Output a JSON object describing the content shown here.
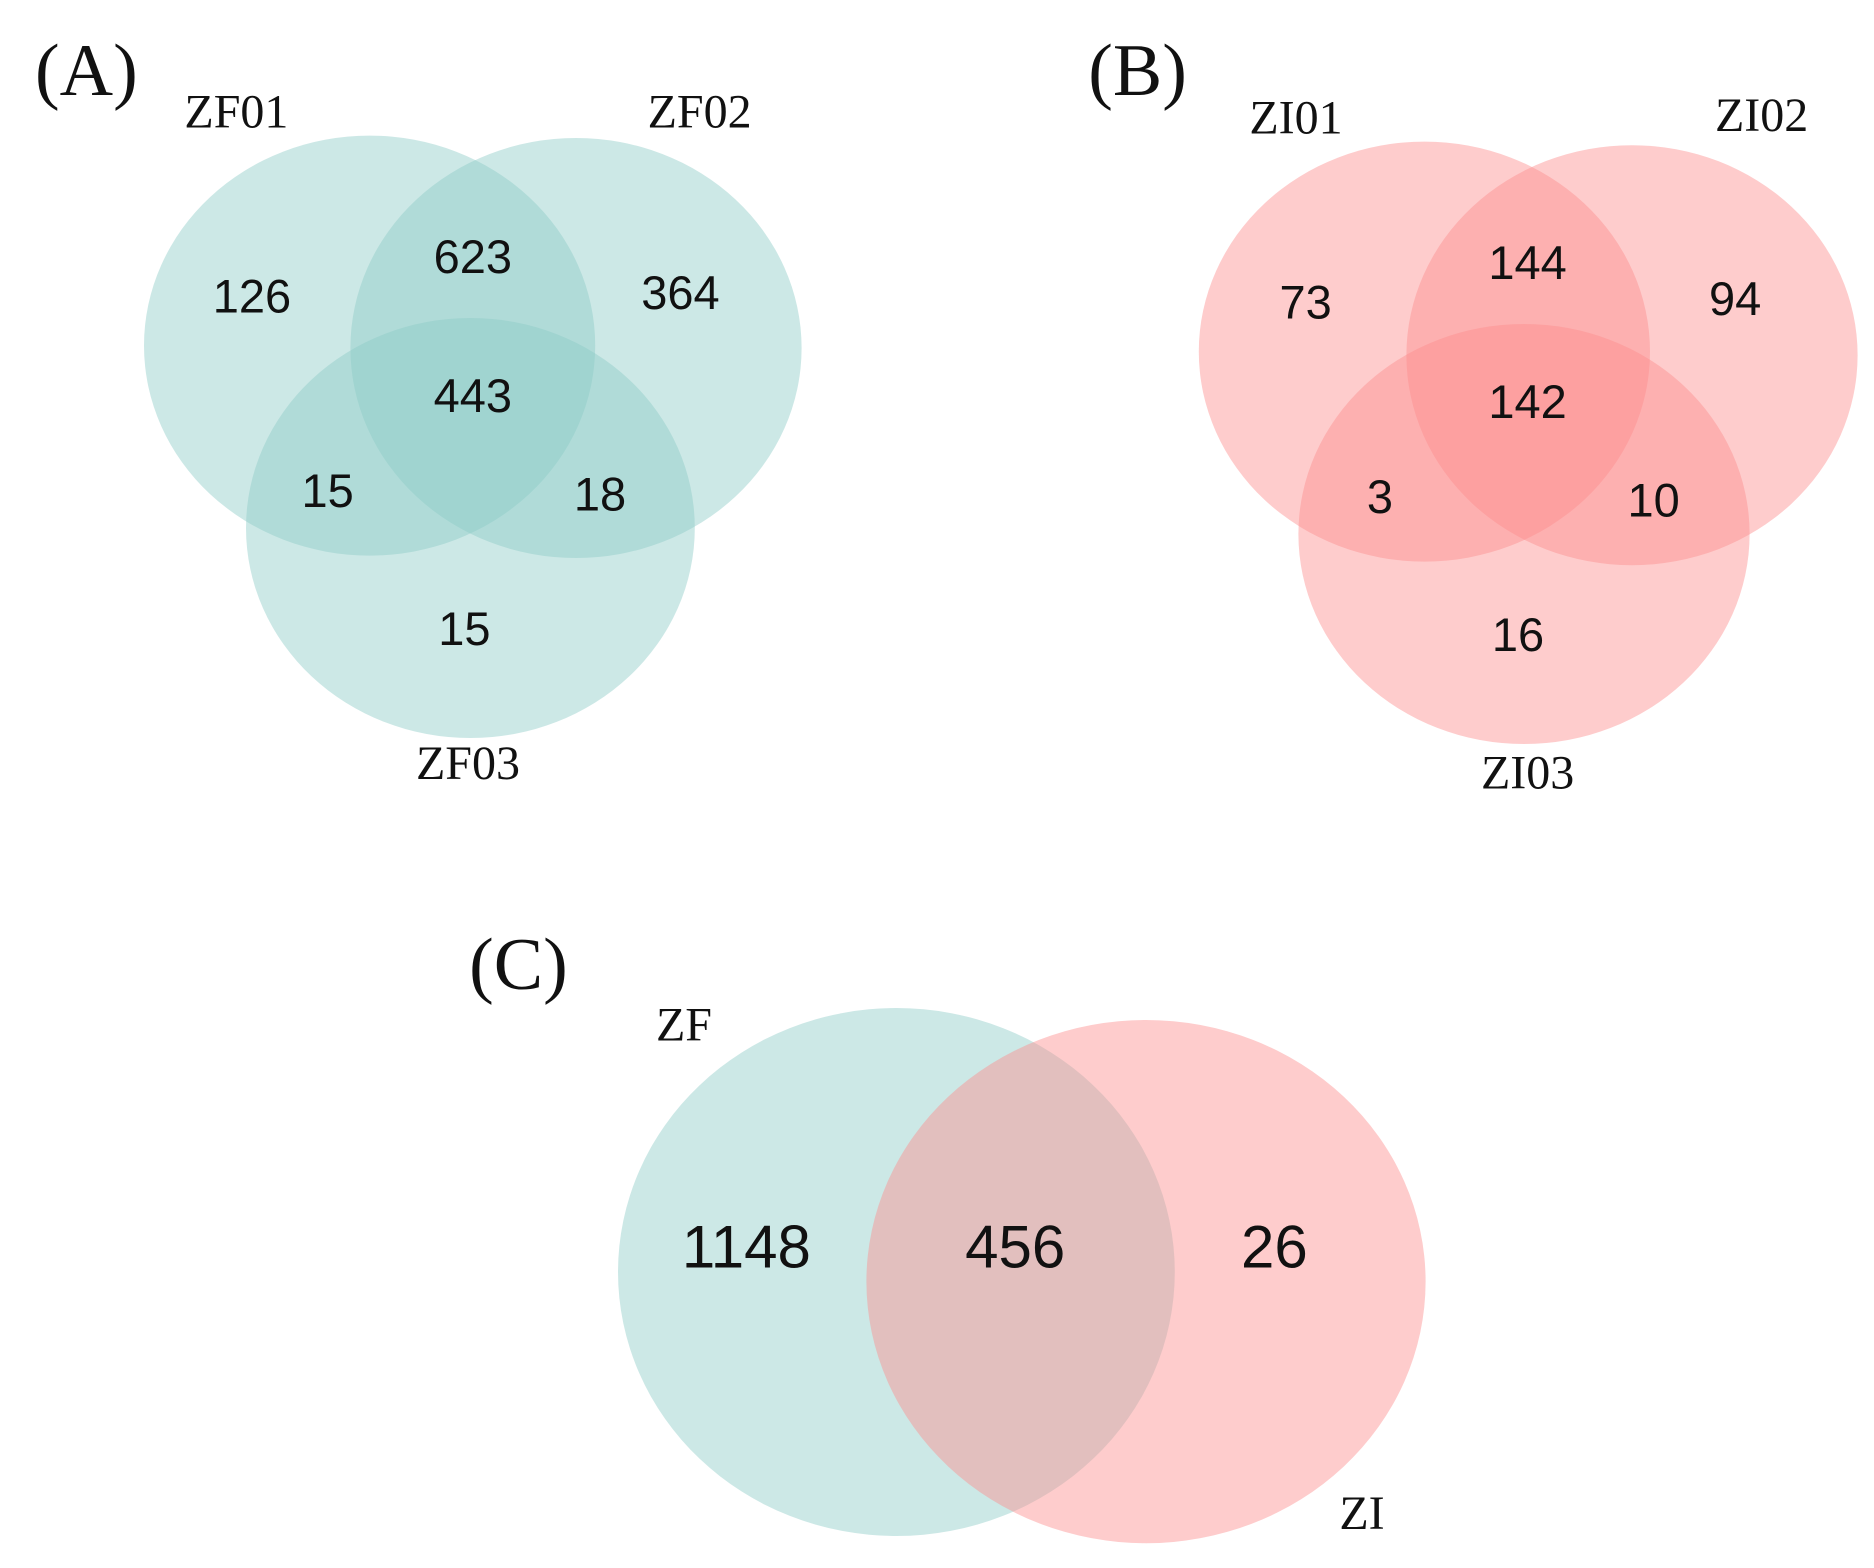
{
  "chart_data": [
    {
      "type": "venn",
      "title": "(A)",
      "sets": [
        {
          "name": "ZF01",
          "color": "#8ecbc7"
        },
        {
          "name": "ZF02",
          "color": "#8ecbc7"
        },
        {
          "name": "ZF03",
          "color": "#8ecbc7"
        }
      ],
      "values": [
        126,
        364,
        15,
        623,
        15,
        18,
        443
      ]
    },
    {
      "type": "venn",
      "title": "(B)",
      "sets": [
        {
          "name": "ZI01",
          "color": "#fc8f8f"
        },
        {
          "name": "ZI02",
          "color": "#fc8f8f"
        },
        {
          "name": "ZI03",
          "color": "#fc8f8f"
        }
      ],
      "values": [
        73,
        94,
        16,
        144,
        3,
        10,
        142
      ]
    },
    {
      "type": "venn",
      "title": "(C)",
      "sets": [
        {
          "name": "ZF",
          "color": "#8ecbc7"
        },
        {
          "name": "ZI",
          "color": "#fc8f8f"
        }
      ],
      "values": [
        1148,
        26,
        456
      ]
    }
  ]
}
